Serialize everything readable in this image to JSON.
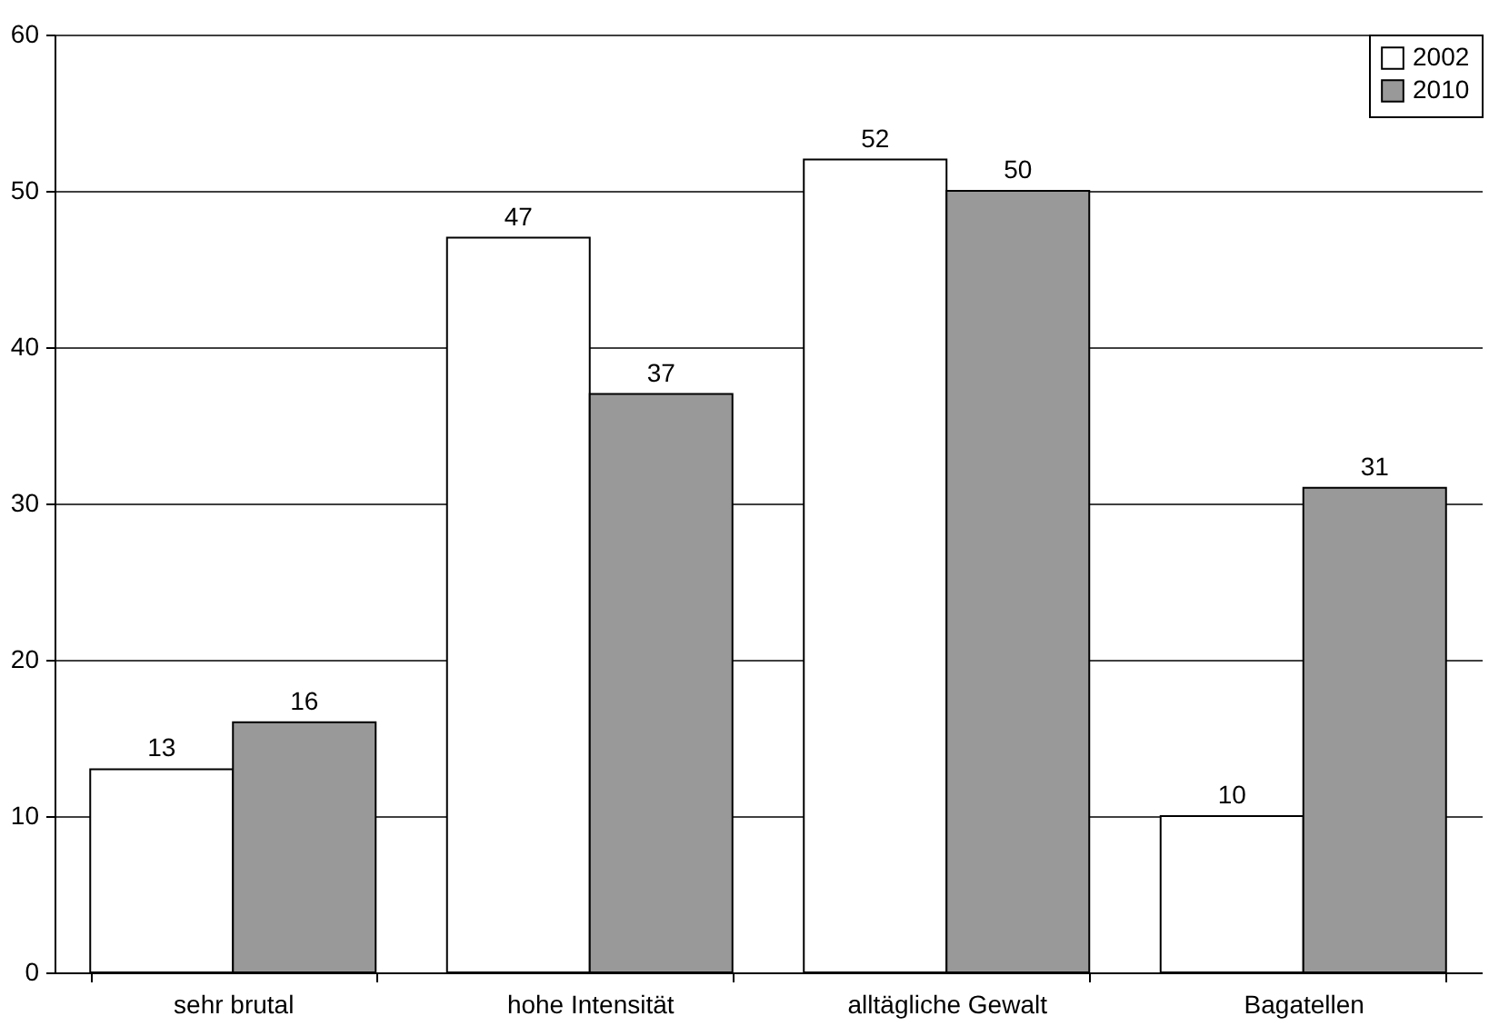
{
  "chart_data": {
    "type": "bar",
    "categories": [
      "sehr brutal",
      "hohe Intensität",
      "alltägliche Gewalt",
      "Bagatellen"
    ],
    "series": [
      {
        "name": "2002",
        "color": "#ffffff",
        "values": [
          13,
          47,
          52,
          10
        ]
      },
      {
        "name": "2010",
        "color": "#999999",
        "values": [
          16,
          37,
          50,
          31
        ]
      }
    ],
    "ylim": [
      0,
      60
    ],
    "yticks": [
      0,
      10,
      20,
      30,
      40,
      50,
      60
    ],
    "grid": "y",
    "legend": "top right",
    "data_labels": true
  }
}
